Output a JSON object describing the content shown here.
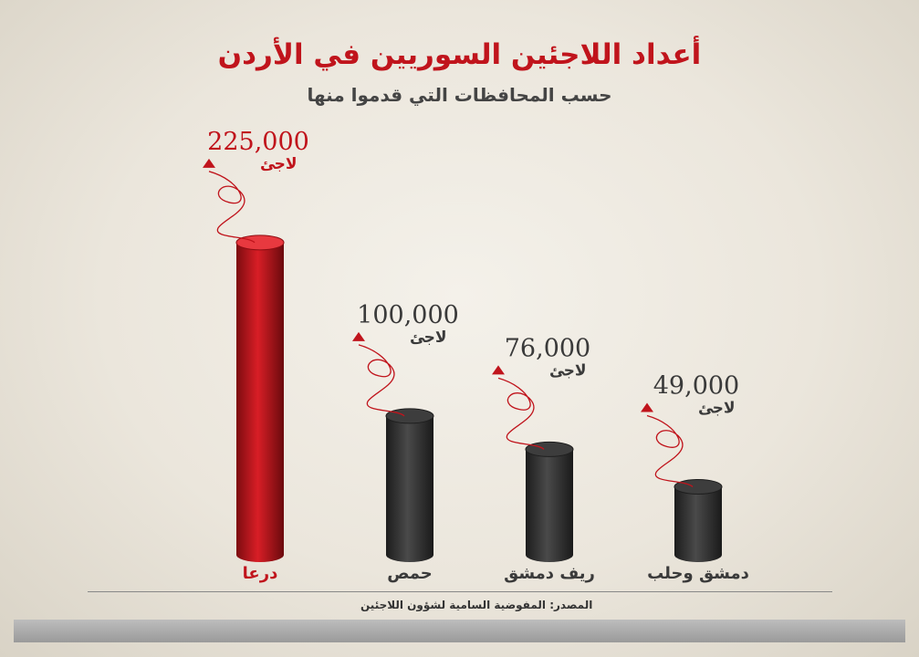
{
  "title": "أعداد اللاجئين السوريين في الأردن",
  "subtitle": "حسب المحافظات التي قدموا منها",
  "source_label": "المصدر:",
  "source_text": "المفوضية السامية لشؤون اللاجئين",
  "colors": {
    "highlight": "#c0141c",
    "bar": "#2f2f2f",
    "text": "#3a3a3a"
  },
  "chart_data": {
    "type": "bar",
    "title": "أعداد اللاجئين السوريين في الأردن",
    "subtitle": "حسب المحافظات التي قدموا منها",
    "categories": [
      "درعا",
      "حمص",
      "ريف دمشق",
      "دمشق وحلب"
    ],
    "values": [
      225000,
      100000,
      76000,
      49000
    ],
    "value_labels": [
      "225,000",
      "100,000",
      "76,000",
      "49,000"
    ],
    "unit_label": "لاجئ",
    "highlight_index": 0,
    "ylim": [
      0,
      240000
    ],
    "grid": false,
    "legend": "none"
  }
}
